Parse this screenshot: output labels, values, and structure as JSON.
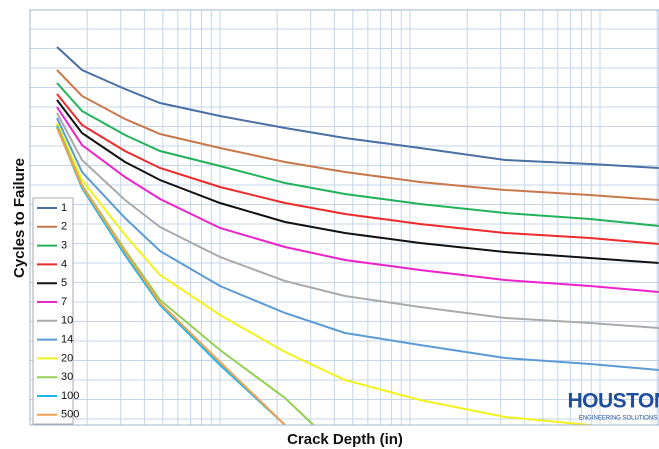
{
  "chart_data": {
    "type": "line",
    "x_label": "Crack Depth (in)",
    "y_label": "Cycles to Failure",
    "x": [
      27,
      52,
      95,
      130,
      190,
      255,
      315,
      390,
      475,
      560,
      629
    ],
    "xlim": [
      0,
      629
    ],
    "ylim": [
      0,
      415
    ],
    "grid": true,
    "legend": "lower left",
    "series": [
      {
        "name": "1",
        "color": "#4a6fa5",
        "values": [
          378,
          355,
          336,
          322,
          309,
          297,
          287,
          277,
          265,
          261,
          257
        ]
      },
      {
        "name": "2",
        "color": "#c8784a",
        "values": [
          355,
          329,
          306,
          291,
          277,
          263,
          253,
          243,
          235,
          230,
          225
        ]
      },
      {
        "name": "3",
        "color": "#22b35a",
        "values": [
          342,
          314,
          290,
          274,
          259,
          242,
          231,
          221,
          212,
          206,
          199
        ]
      },
      {
        "name": "4",
        "color": "#ee2a2a",
        "values": [
          331,
          300,
          274,
          257,
          238,
          222,
          211,
          201,
          192,
          187,
          181
        ]
      },
      {
        "name": "5",
        "color": "#111111",
        "values": [
          325,
          292,
          263,
          245,
          222,
          203,
          192,
          182,
          173,
          167,
          162
        ]
      },
      {
        "name": "7",
        "color": "#ee22cc",
        "values": [
          318,
          280,
          248,
          226,
          197,
          178,
          165,
          155,
          145,
          139,
          133
        ]
      },
      {
        "name": "10",
        "color": "#aaaaaa",
        "values": [
          312,
          265,
          225,
          198,
          168,
          144,
          129,
          118,
          107,
          102,
          97
        ]
      },
      {
        "name": "14",
        "color": "#5b9bd5",
        "values": [
          307,
          253,
          207,
          174,
          139,
          112,
          92,
          80,
          67,
          61,
          55
        ]
      },
      {
        "name": "20",
        "color": "#f2f21a",
        "values": [
          302,
          245,
          190,
          150,
          110,
          73,
          45,
          25,
          8,
          0,
          null
        ]
      },
      {
        "name": "30",
        "color": "#92d050",
        "values": [
          300,
          240,
          175,
          125,
          75,
          27,
          -30,
          null,
          null,
          null,
          null
        ]
      },
      {
        "name": "100",
        "color": "#1fb7e8",
        "values": [
          298,
          237,
          170,
          120,
          60,
          0,
          null,
          null,
          null,
          null,
          null
        ]
      },
      {
        "name": "500",
        "color": "#f0a050",
        "values": [
          297,
          239,
          173,
          122,
          63,
          0,
          null,
          null,
          null,
          null,
          null
        ]
      }
    ],
    "logo": {
      "title": "HOUSTON",
      "subtitle": "ENGINEERING SOLUTIONS"
    }
  }
}
